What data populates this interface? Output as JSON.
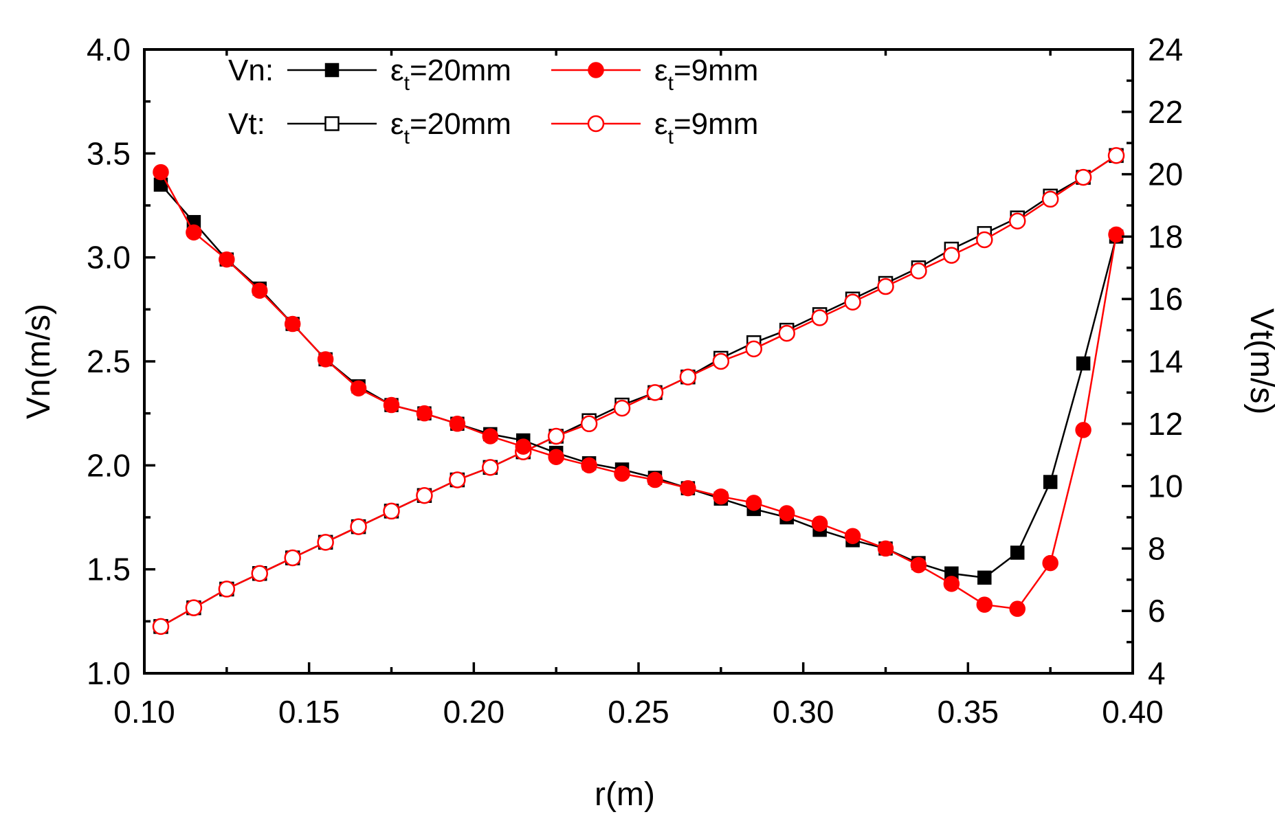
{
  "chart_data": {
    "type": "line",
    "title": "",
    "xlabel": "r(m)",
    "ylabel_left": "Vn(m/s)",
    "ylabel_right": "Vt(m/s)",
    "xlim": [
      0.1,
      0.4
    ],
    "ylim_left": [
      1.0,
      4.0
    ],
    "ylim_right": [
      4,
      24
    ],
    "x_ticks": [
      "0.10",
      "0.15",
      "0.20",
      "0.25",
      "0.30",
      "0.35",
      "0.40"
    ],
    "y_left_ticks": [
      "1.0",
      "1.5",
      "2.0",
      "2.5",
      "3.0",
      "3.5",
      "4.0"
    ],
    "y_right_ticks": [
      "4",
      "6",
      "8",
      "10",
      "12",
      "14",
      "16",
      "18",
      "20",
      "22",
      "24"
    ],
    "grid": false,
    "legend_position": "top-left",
    "legend_row_labels": {
      "vn": "Vn:",
      "vt": "Vt:"
    },
    "legend_symbol": "ε",
    "legend_subscript": "t",
    "x": [
      0.105,
      0.115,
      0.125,
      0.135,
      0.145,
      0.155,
      0.165,
      0.175,
      0.185,
      0.195,
      0.205,
      0.215,
      0.225,
      0.235,
      0.245,
      0.255,
      0.265,
      0.275,
      0.285,
      0.295,
      0.305,
      0.315,
      0.325,
      0.335,
      0.345,
      0.355,
      0.365,
      0.375,
      0.385,
      0.395
    ],
    "series": [
      {
        "name": "Vn: εt=20mm",
        "legend_value": "=20mm",
        "axis": "left",
        "color": "#000000",
        "marker": "square-filled",
        "values": [
          3.35,
          3.17,
          2.99,
          2.85,
          2.68,
          2.51,
          2.38,
          2.29,
          2.25,
          2.2,
          2.15,
          2.12,
          2.06,
          2.01,
          1.98,
          1.94,
          1.89,
          1.84,
          1.79,
          1.75,
          1.69,
          1.64,
          1.6,
          1.53,
          1.48,
          1.46,
          1.58,
          1.92,
          2.49,
          3.1
        ]
      },
      {
        "name": "Vn: εt=9mm",
        "legend_value": "=9mm",
        "axis": "left",
        "color": "#ff0000",
        "marker": "circle-filled",
        "values": [
          3.41,
          3.12,
          2.99,
          2.84,
          2.68,
          2.51,
          2.37,
          2.29,
          2.25,
          2.2,
          2.14,
          2.09,
          2.04,
          2.0,
          1.96,
          1.93,
          1.89,
          1.85,
          1.82,
          1.77,
          1.72,
          1.66,
          1.6,
          1.52,
          1.43,
          1.33,
          1.31,
          1.53,
          2.17,
          3.11
        ]
      },
      {
        "name": "Vt: εt=20mm",
        "legend_value": "=20mm",
        "axis": "right",
        "color": "#000000",
        "marker": "square-open",
        "values": [
          5.5,
          6.1,
          6.7,
          7.2,
          7.7,
          8.2,
          8.7,
          9.2,
          9.7,
          10.2,
          10.6,
          11.1,
          11.6,
          12.1,
          12.6,
          13.0,
          13.5,
          14.1,
          14.6,
          15.0,
          15.5,
          16.0,
          16.5,
          17.0,
          17.6,
          18.1,
          18.6,
          19.3,
          19.9,
          20.6
        ]
      },
      {
        "name": "Vt: εt=9mm",
        "legend_value": "=9mm",
        "axis": "right",
        "color": "#ff0000",
        "marker": "circle-open",
        "values": [
          5.5,
          6.1,
          6.7,
          7.2,
          7.7,
          8.2,
          8.7,
          9.2,
          9.7,
          10.2,
          10.6,
          11.1,
          11.6,
          12.0,
          12.5,
          13.0,
          13.5,
          14.0,
          14.4,
          14.9,
          15.4,
          15.9,
          16.4,
          16.9,
          17.4,
          17.9,
          18.5,
          19.2,
          19.9,
          20.6
        ]
      }
    ]
  }
}
